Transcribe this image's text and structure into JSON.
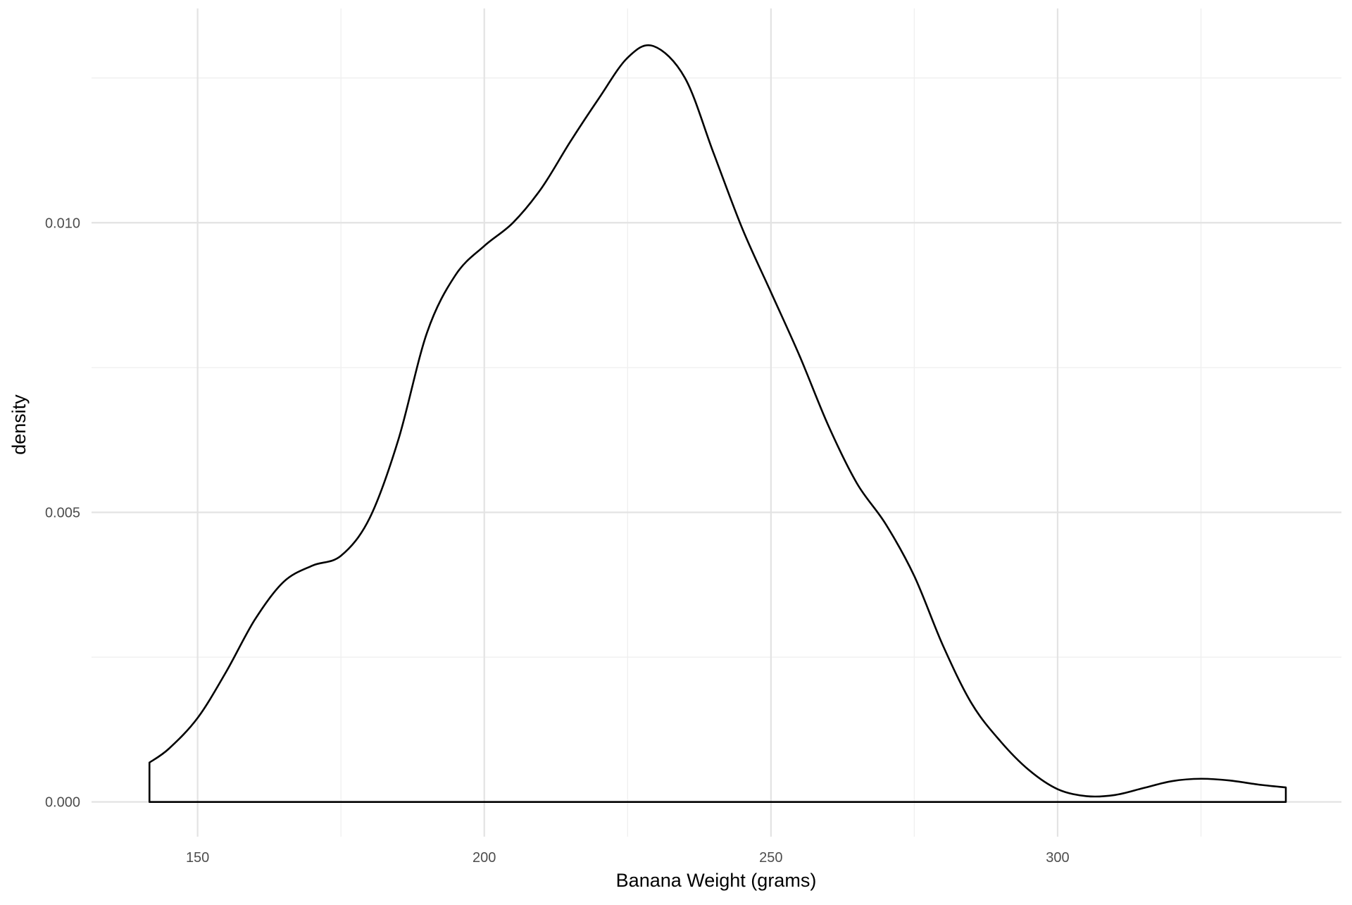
{
  "chart_data": {
    "type": "area",
    "title": "",
    "xlabel": "Banana Weight (grams)",
    "ylabel": "density",
    "xlim": [
      131.5,
      349.5
    ],
    "ylim": [
      -0.0006,
      0.0137
    ],
    "x_ticks": [
      150,
      200,
      250,
      300
    ],
    "x_tick_labels": [
      "150",
      "200",
      "250",
      "300"
    ],
    "y_ticks": [
      0.0,
      0.005,
      0.01
    ],
    "y_tick_labels": [
      "0.000",
      "0.005",
      "0.010"
    ],
    "grid": true,
    "legend": "none",
    "fill": "none",
    "line_color": "#000000",
    "series": [
      {
        "x": [
          141.6,
          145,
          150,
          155,
          160,
          165,
          170,
          175,
          180,
          185,
          190,
          195,
          200,
          205,
          210,
          215,
          220,
          225,
          229.5,
          235,
          240,
          245,
          250,
          255,
          260,
          265,
          270,
          275,
          280,
          285,
          290,
          295,
          300,
          305,
          310,
          315,
          320,
          325,
          330,
          335,
          339.8
        ],
        "y": [
          0.00068,
          0.00092,
          0.00145,
          0.00225,
          0.00315,
          0.0038,
          0.00408,
          0.00425,
          0.0049,
          0.00625,
          0.0081,
          0.0091,
          0.0096,
          0.01,
          0.0106,
          0.0114,
          0.01215,
          0.01285,
          0.01305,
          0.0125,
          0.0112,
          0.0099,
          0.0088,
          0.0077,
          0.0065,
          0.0055,
          0.0048,
          0.0039,
          0.0027,
          0.0017,
          0.00105,
          0.00055,
          0.00022,
          0.0001,
          0.00012,
          0.00024,
          0.00036,
          0.0004,
          0.00037,
          0.0003,
          0.00025
        ]
      }
    ]
  }
}
